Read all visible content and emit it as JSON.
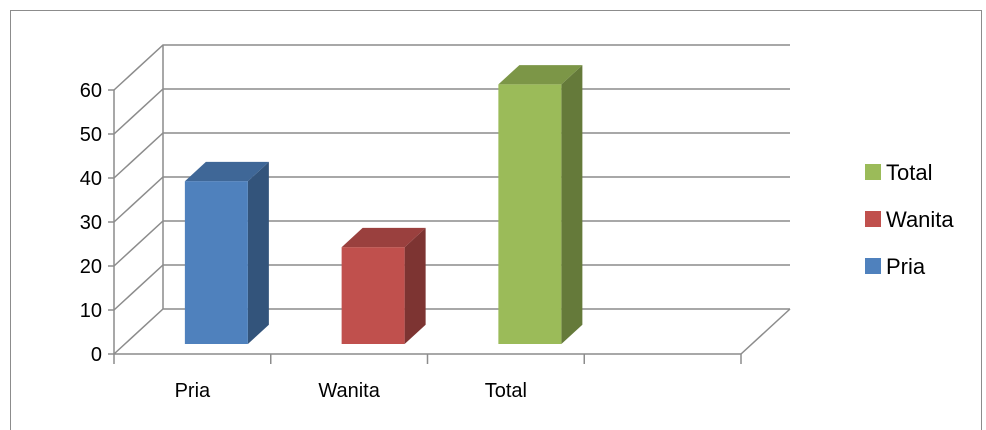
{
  "chart_data": {
    "type": "bar",
    "style": "3d-column",
    "categories": [
      "Pria",
      "Wanita",
      "Total"
    ],
    "series": [
      {
        "name": "Pria",
        "category": "Pria",
        "value": 37,
        "color": "#4f81bd"
      },
      {
        "name": "Wanita",
        "category": "Wanita",
        "value": 22,
        "color": "#c0504d"
      },
      {
        "name": "Total",
        "category": "Total",
        "value": 59,
        "color": "#9bbb59"
      }
    ],
    "yticks": [
      0,
      10,
      20,
      30,
      40,
      50,
      60
    ],
    "ylim": [
      0,
      60
    ],
    "grid": true,
    "legend": {
      "placement": "right",
      "items": [
        "Total",
        "Wanita",
        "Pria"
      ]
    }
  },
  "colors": {
    "pria": "#4f81bd",
    "wanita": "#c0504d",
    "total": "#9bbb59",
    "gridline": "#8c8c8c"
  }
}
